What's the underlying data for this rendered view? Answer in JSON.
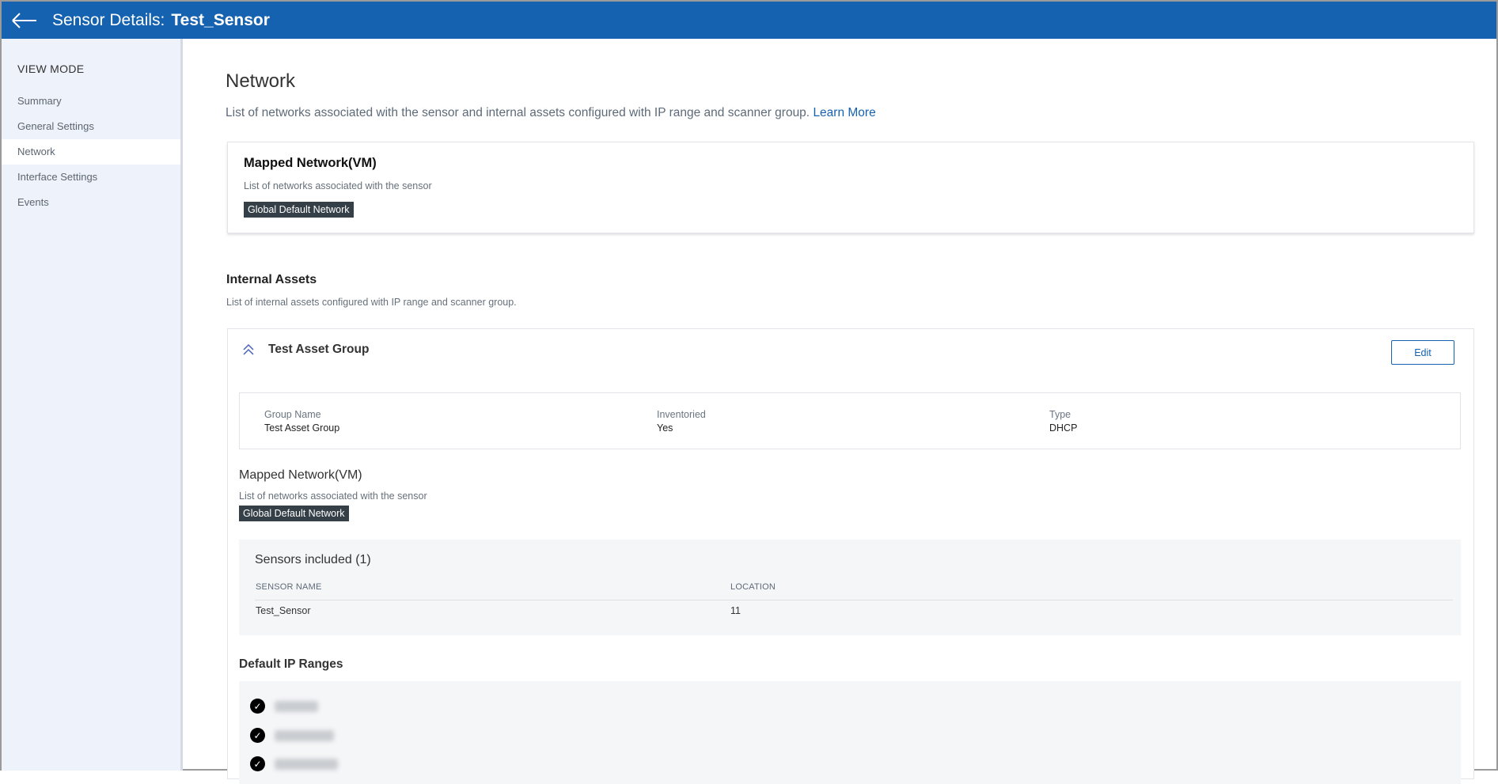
{
  "header": {
    "title_prefix": "Sensor Details:",
    "sensor_name": "Test_Sensor"
  },
  "sidebar": {
    "heading": "VIEW MODE",
    "items": [
      {
        "label": "Summary"
      },
      {
        "label": "General Settings"
      },
      {
        "label": "Network",
        "active": true
      },
      {
        "label": "Interface Settings"
      },
      {
        "label": "Events"
      }
    ]
  },
  "page": {
    "title": "Network",
    "description": "List of networks associated with the sensor and internal assets configured with IP range and scanner group.",
    "learn_more": "Learn More"
  },
  "mapped_network": {
    "title": "Mapped Network(VM)",
    "subtitle": "List of networks associated with the sensor",
    "tag": "Global Default Network"
  },
  "internal_assets": {
    "title": "Internal Assets",
    "subtitle": "List of internal assets configured with IP range and scanner group.",
    "group": {
      "name": "Test Asset Group",
      "edit_label": "Edit",
      "fields": [
        {
          "label": "Group Name",
          "value": "Test Asset Group"
        },
        {
          "label": "Inventoried",
          "value": "Yes"
        },
        {
          "label": "Type",
          "value": "DHCP"
        }
      ],
      "mapped_network": {
        "title": "Mapped Network(VM)",
        "subtitle": "List of networks associated with the sensor",
        "tag": "Global Default Network"
      },
      "sensors": {
        "title": "Sensors included (1)",
        "columns": [
          "SENSOR NAME",
          "LOCATION"
        ],
        "rows": [
          {
            "name": "Test_Sensor",
            "location": "11"
          }
        ]
      },
      "ip_ranges": {
        "title": "Default IP Ranges",
        "count_visible": 3
      }
    }
  },
  "colors": {
    "header": "#1562b0",
    "tag": "#343f47",
    "sidebar": "#eef2fa"
  }
}
